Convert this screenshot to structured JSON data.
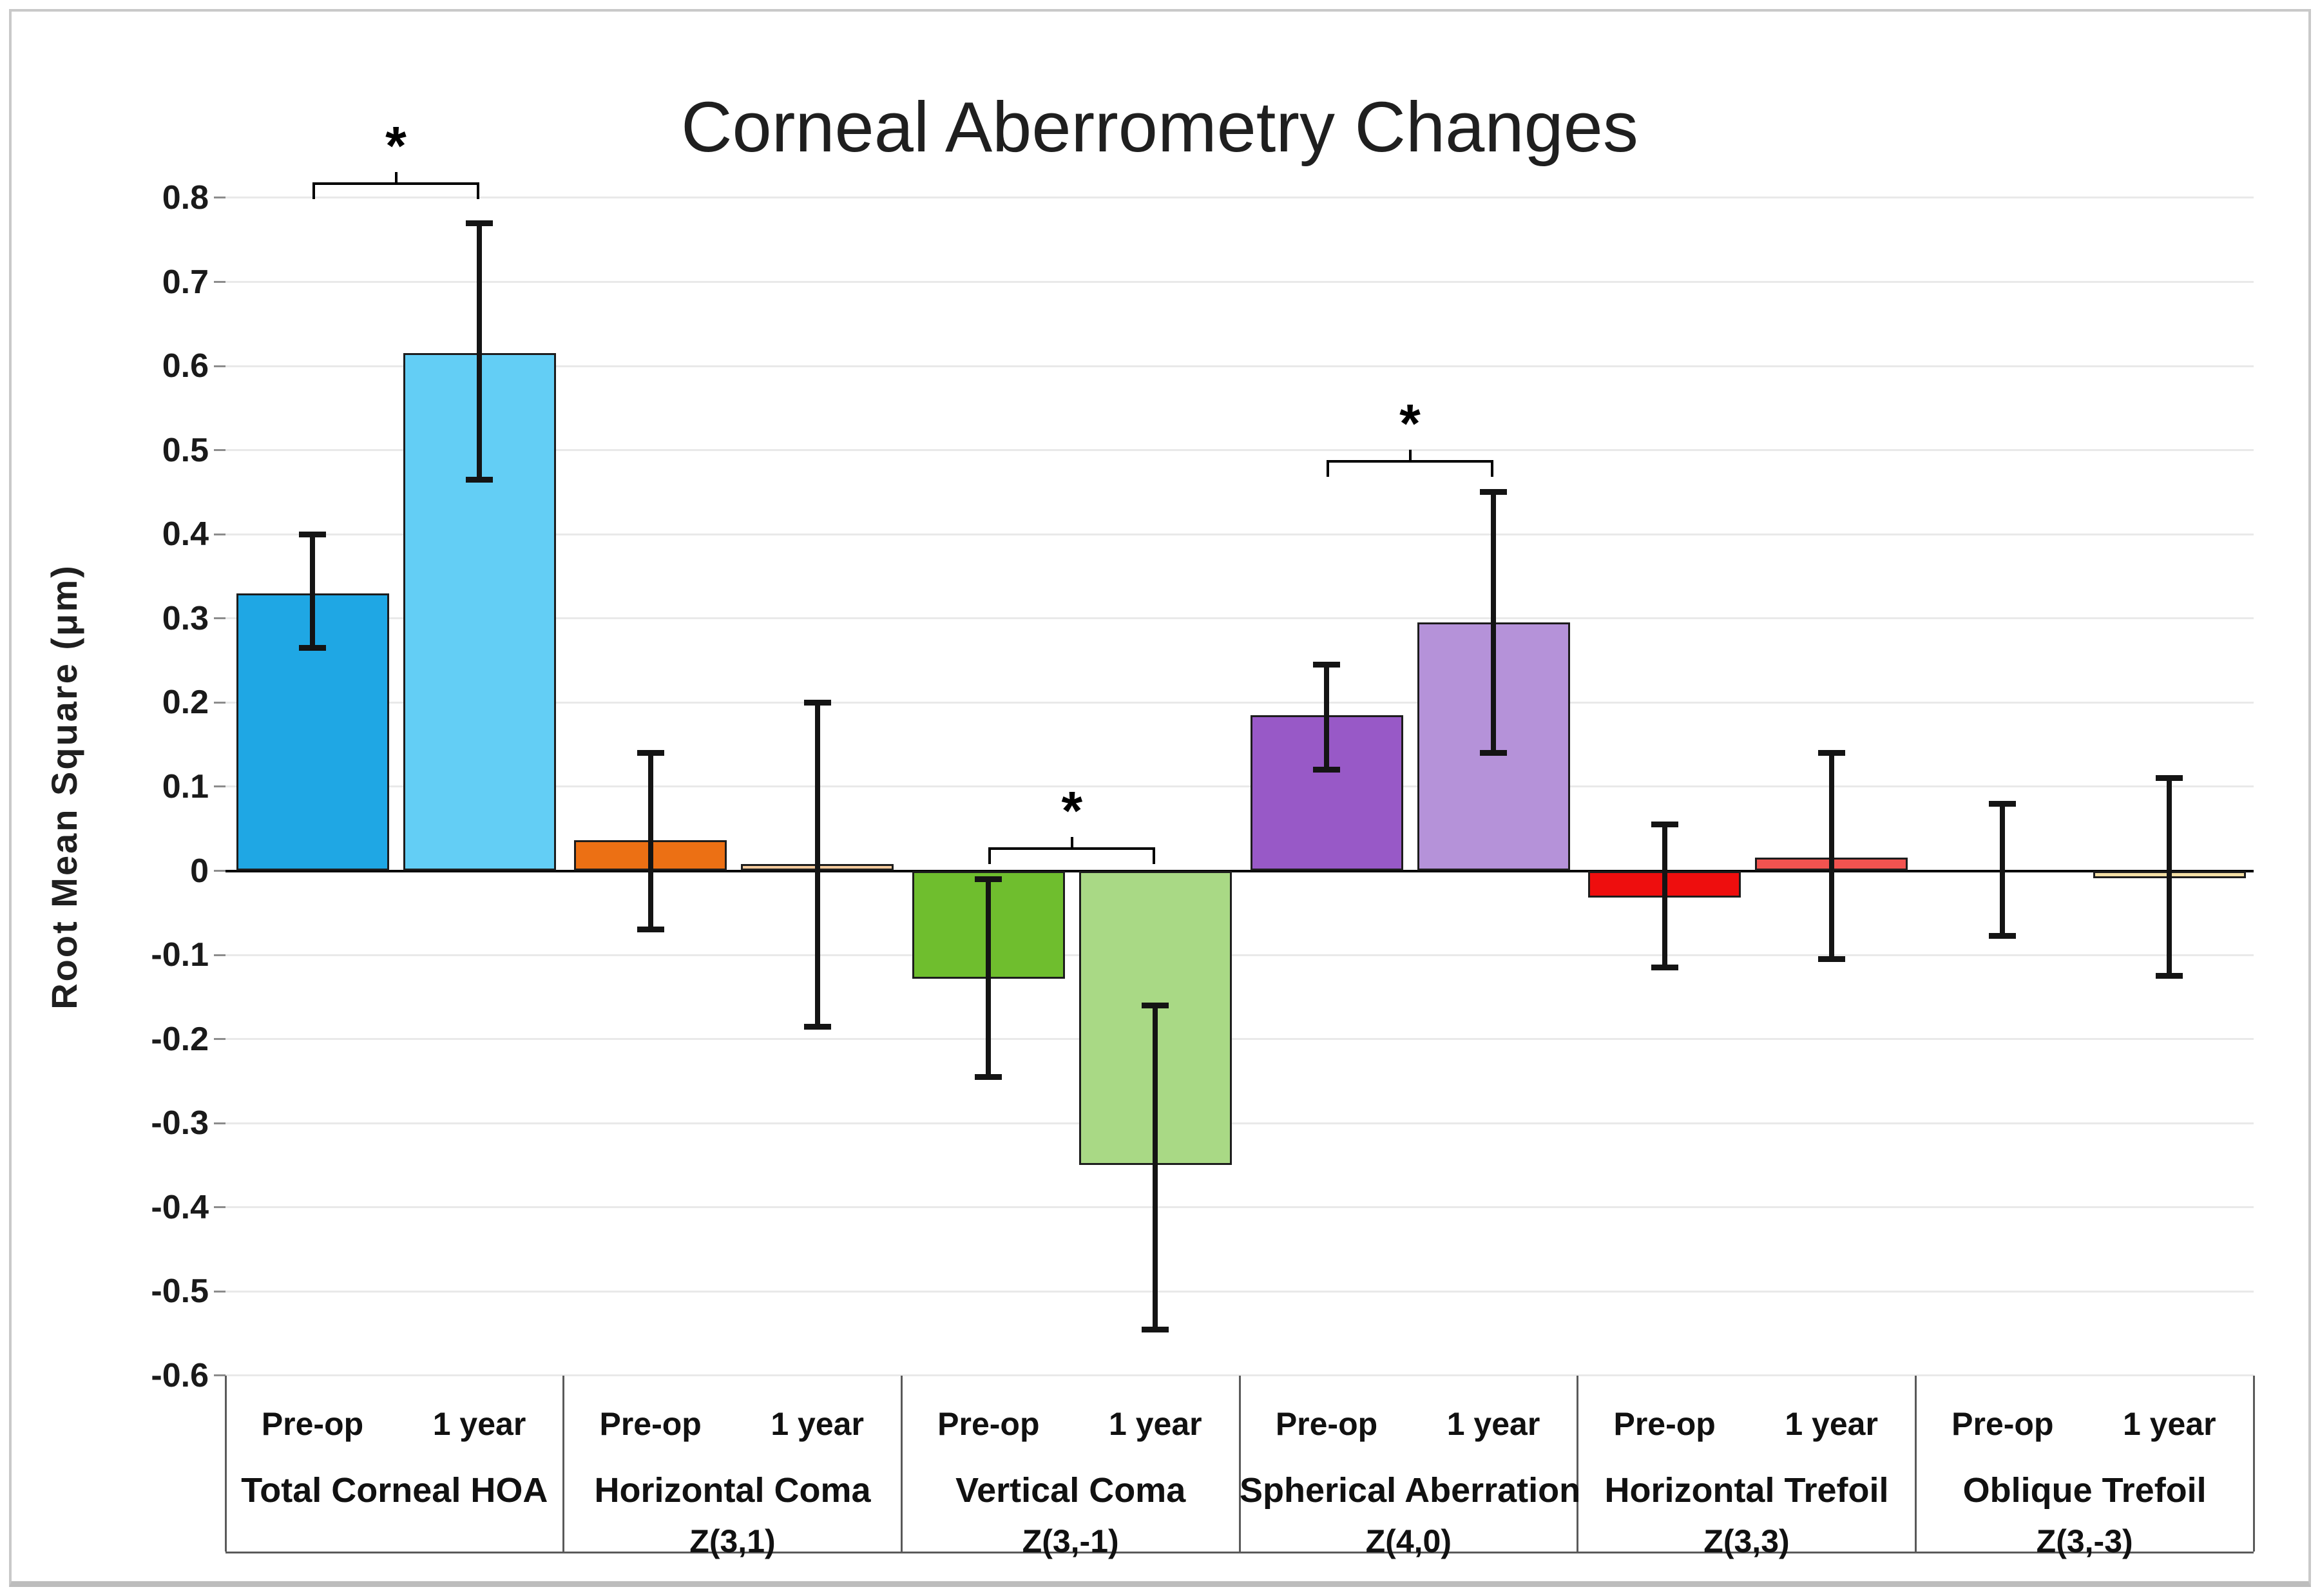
{
  "title": "Corneal Aberrometry Changes",
  "y_axis": {
    "label": "Root Mean Square (μm)",
    "min": -0.6,
    "max": 0.8,
    "step": 0.1,
    "tick_labels": [
      "0.8",
      "0.7",
      "0.6",
      "0.5",
      "0.4",
      "0.3",
      "0.2",
      "0.1",
      "0",
      "-0.1",
      "-0.2",
      "-0.3",
      "-0.4",
      "-0.5",
      "-0.6"
    ]
  },
  "chart_data": {
    "type": "bar",
    "categories": [
      "Total Corneal HOA",
      "Horizontal Coma",
      "Vertical Coma",
      "Spherical Aberration",
      "Horizontal Trefoil",
      "Oblique Trefoil"
    ],
    "category_sublabels": [
      "",
      "Z(3,1)",
      "Z(3,-1)",
      "Z(4,0)",
      "Z(3,3)",
      "Z(3,-3)"
    ],
    "series": [
      {
        "name": "Pre-op",
        "values": [
          0.33,
          0.036,
          -0.128,
          0.185,
          -0.032,
          0.0
        ],
        "error_low": [
          0.265,
          -0.07,
          -0.245,
          0.12,
          -0.115,
          -0.077
        ],
        "error_high": [
          0.4,
          0.14,
          -0.01,
          0.245,
          0.055,
          0.08
        ],
        "colors": [
          "#1FA7E4",
          "#EC7014",
          "#6FBE2E",
          "#9859C7",
          "#EE0E0E",
          "#F4DFA5"
        ]
      },
      {
        "name": "1 year",
        "values": [
          0.615,
          0.008,
          -0.35,
          0.295,
          0.016,
          -0.009
        ],
        "error_low": [
          0.465,
          -0.185,
          -0.545,
          0.14,
          -0.105,
          -0.125
        ],
        "error_high": [
          0.77,
          0.2,
          -0.16,
          0.45,
          0.14,
          0.11
        ],
        "colors": [
          "#63CEF5",
          "#F4CB9E",
          "#A9D985",
          "#B592D9",
          "#F25350",
          "#F4DFA5"
        ]
      }
    ],
    "significance_markers": [
      {
        "category_index": 0,
        "symbol": "*",
        "bracket_y": 0.818
      },
      {
        "category_index": 2,
        "symbol": "*",
        "bracket_y": 0.028
      },
      {
        "category_index": 3,
        "symbol": "*",
        "bracket_y": 0.488
      }
    ],
    "ylim": [
      -0.6,
      0.8
    ],
    "grid": true,
    "legend_position": "none"
  },
  "colors": {
    "gridline": "#E9E9E9",
    "zero_line": "#000000",
    "bar_outline": "#1D1D1D",
    "error_bar": "#141414",
    "frame_border": "#C9C9C9",
    "separator": "#5A5A5A",
    "text": "#1A1A1A"
  }
}
